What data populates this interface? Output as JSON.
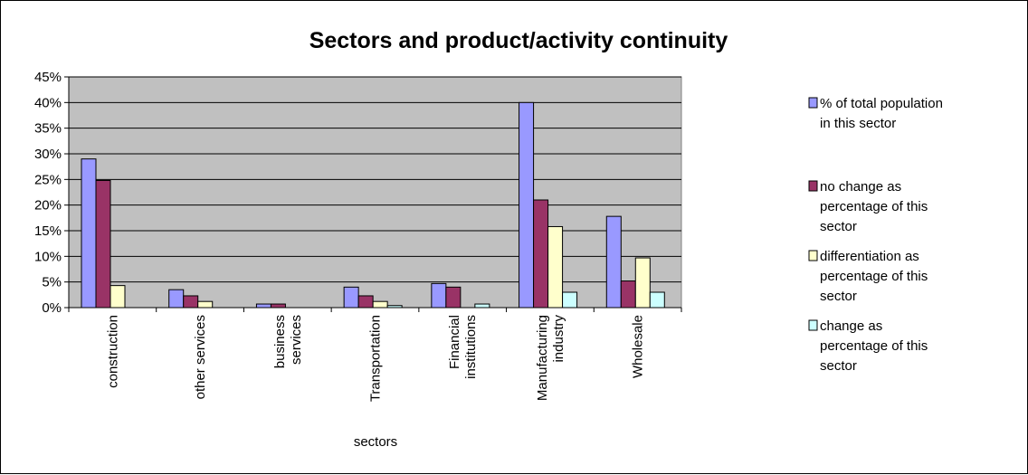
{
  "chart_data": {
    "type": "bar",
    "title": "Sectors and product/activity continuity",
    "xlabel": "sectors",
    "ylabel": "",
    "ylim": [
      0,
      0.45
    ],
    "ytick_step": 0.05,
    "ytick_labels": [
      "0%",
      "5%",
      "10%",
      "15%",
      "20%",
      "25%",
      "30%",
      "35%",
      "40%",
      "45%"
    ],
    "grid": true,
    "legend_position": "right",
    "categories": [
      [
        "construction"
      ],
      [
        "other services"
      ],
      [
        "business",
        "services"
      ],
      [
        "Transportation"
      ],
      [
        "Financial",
        "institutions"
      ],
      [
        "Manufacturing",
        "industry"
      ],
      [
        "Wholesale"
      ]
    ],
    "series": [
      {
        "name": [
          "% of total population",
          "in this sector"
        ],
        "color": "#9999ff",
        "values": [
          0.29,
          0.035,
          0.007,
          0.04,
          0.047,
          0.4,
          0.178
        ]
      },
      {
        "name": [
          "no change as",
          "percentage of this",
          "sector"
        ],
        "color": "#993366",
        "values": [
          0.248,
          0.023,
          0.007,
          0.023,
          0.04,
          0.21,
          0.052
        ]
      },
      {
        "name": [
          "differentiation as",
          "percentage of this",
          "sector"
        ],
        "color": "#ffffcc",
        "values": [
          0.043,
          0.012,
          0.0,
          0.012,
          0.0,
          0.158,
          0.097
        ]
      },
      {
        "name": [
          "change as",
          "percentage of this",
          "sector"
        ],
        "color": "#ccffff",
        "values": [
          0.0,
          0.0,
          0.0,
          0.004,
          0.007,
          0.03,
          0.03
        ]
      }
    ],
    "plot_background": "#c0c0c0"
  }
}
